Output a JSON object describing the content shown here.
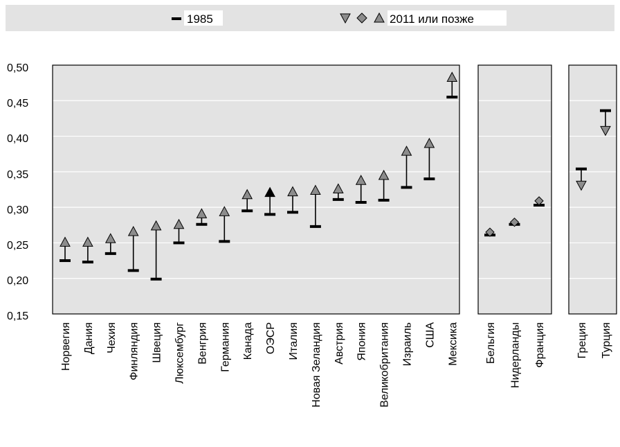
{
  "legend": {
    "item_1985": "1985",
    "item_2011": "2011 или позже"
  },
  "chart_data": {
    "type": "dumbbell",
    "ylim": [
      0.15,
      0.5
    ],
    "yticks": [
      "0,50",
      "0,45",
      "0,40",
      "0,35",
      "0,30",
      "0,25",
      "0,20",
      "0,15"
    ],
    "ytick_values": [
      0.5,
      0.45,
      0.4,
      0.35,
      0.3,
      0.25,
      0.2,
      0.15
    ],
    "series": [
      {
        "name": "1985"
      },
      {
        "name": "2011 или позже"
      }
    ],
    "panels": [
      {
        "group": "increase",
        "points": [
          {
            "country": "Норвегия",
            "v1985": 0.225,
            "v2011": 0.25,
            "marker": "up"
          },
          {
            "country": "Дания",
            "v1985": 0.223,
            "v2011": 0.25,
            "marker": "up"
          },
          {
            "country": "Чехия",
            "v1985": 0.235,
            "v2011": 0.255,
            "marker": "up"
          },
          {
            "country": "Финляндия",
            "v1985": 0.211,
            "v2011": 0.265,
            "marker": "up"
          },
          {
            "country": "Швеция",
            "v1985": 0.199,
            "v2011": 0.273,
            "marker": "up"
          },
          {
            "country": "Люксембург",
            "v1985": 0.25,
            "v2011": 0.275,
            "marker": "up"
          },
          {
            "country": "Венгрия",
            "v1985": 0.276,
            "v2011": 0.29,
            "marker": "up"
          },
          {
            "country": "Германия",
            "v1985": 0.252,
            "v2011": 0.293,
            "marker": "up"
          },
          {
            "country": "Канада",
            "v1985": 0.295,
            "v2011": 0.317,
            "marker": "up"
          },
          {
            "country": "ОЭСР",
            "v1985": 0.29,
            "v2011": 0.32,
            "marker": "up-black"
          },
          {
            "country": "Италия",
            "v1985": 0.293,
            "v2011": 0.321,
            "marker": "up"
          },
          {
            "country": "Новая Зеландия",
            "v1985": 0.273,
            "v2011": 0.323,
            "marker": "up"
          },
          {
            "country": "Австрия",
            "v1985": 0.311,
            "v2011": 0.325,
            "marker": "up"
          },
          {
            "country": "Япония",
            "v1985": 0.307,
            "v2011": 0.337,
            "marker": "up"
          },
          {
            "country": "Великобритания",
            "v1985": 0.31,
            "v2011": 0.344,
            "marker": "up"
          },
          {
            "country": "Израиль",
            "v1985": 0.328,
            "v2011": 0.378,
            "marker": "up"
          },
          {
            "country": "США",
            "v1985": 0.34,
            "v2011": 0.389,
            "marker": "up"
          },
          {
            "country": "Мексика",
            "v1985": 0.455,
            "v2011": 0.482,
            "marker": "up"
          }
        ]
      },
      {
        "group": "stable",
        "points": [
          {
            "country": "Бельгия",
            "v1985": 0.261,
            "v2011": 0.265,
            "marker": "diamond"
          },
          {
            "country": "Нидерланды",
            "v1985": 0.276,
            "v2011": 0.279,
            "marker": "diamond"
          },
          {
            "country": "Франция",
            "v1985": 0.303,
            "v2011": 0.309,
            "marker": "diamond"
          }
        ]
      },
      {
        "group": "decrease",
        "points": [
          {
            "country": "Греция",
            "v1985": 0.354,
            "v2011": 0.332,
            "marker": "down"
          },
          {
            "country": "Турция",
            "v1985": 0.436,
            "v2011": 0.409,
            "marker": "down"
          }
        ]
      }
    ]
  }
}
